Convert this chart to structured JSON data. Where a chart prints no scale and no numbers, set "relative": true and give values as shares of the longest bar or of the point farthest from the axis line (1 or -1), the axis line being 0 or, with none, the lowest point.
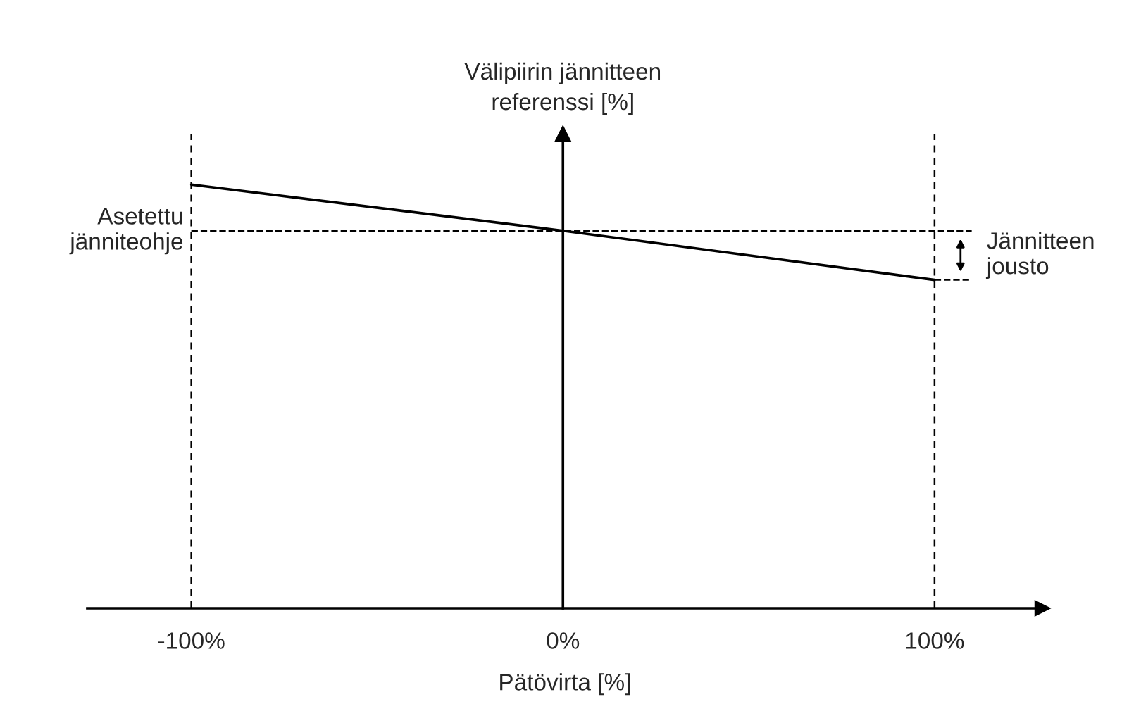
{
  "chart_data": {
    "type": "line",
    "relative": true,
    "xlabel": "Pätövirta [%]",
    "ylabel": "Välipiirin jännitteen\nreferenssi [%]",
    "xlim": [
      -128,
      129
    ],
    "xticks": [
      {
        "value": -100,
        "label": "-100%"
      },
      {
        "value": 0,
        "label": "0%"
      },
      {
        "value": 100,
        "label": "100%"
      }
    ],
    "series": [
      {
        "color": "#000000",
        "x": [
          -100,
          0,
          100
        ],
        "values": [
          1,
          0.891,
          0.775
        ]
      }
    ],
    "ref_lines": [
      {
        "axis": "x",
        "value": -100,
        "line_style": "dashed",
        "color": "#000000"
      },
      {
        "axis": "x",
        "value": 100,
        "line_style": "dashed",
        "color": "#000000"
      },
      {
        "axis": "y",
        "value": 0.891,
        "label": "Asetettu\njänniteohje",
        "line_style": "dashed",
        "color": "#000000"
      }
    ],
    "annotations": [
      "Jännitteen\njousto"
    ],
    "grid": false,
    "legend": false,
    "marker": "none",
    "line_style": "solid"
  }
}
